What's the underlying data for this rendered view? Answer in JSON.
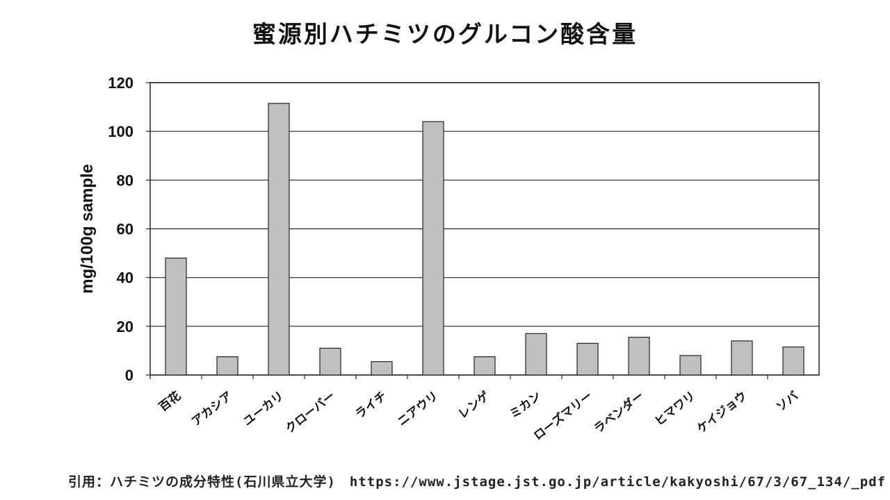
{
  "chart_data": {
    "type": "bar",
    "title": "蜜源別ハチミツのグルコン酸含量",
    "ylabel": "mg/100g  sample",
    "xlabel": "",
    "ylim": [
      0,
      120
    ],
    "yticks": [
      0,
      20,
      40,
      60,
      80,
      100,
      120
    ],
    "grid": "horizontal",
    "categories": [
      "百花",
      "アカシア",
      "ユーカリ",
      "クローバー",
      "ライチ",
      "ニアウリ",
      "レンゲ",
      "ミカン",
      "ローズマリー",
      "ラベンダー",
      "ヒマワリ",
      "ケイジョウ",
      "ソバ"
    ],
    "values": [
      48,
      7.5,
      111.5,
      11,
      5.5,
      104,
      7.5,
      17,
      13,
      15.5,
      8,
      14,
      11.5
    ],
    "bar_color": "#c0c0c0"
  },
  "footer": {
    "source": "引用：ハチミツの成分特性(石川県立大学)　https://www.jstage.jst.go.jp/article/kakyoshi/67/3/67_134/_pdf"
  }
}
